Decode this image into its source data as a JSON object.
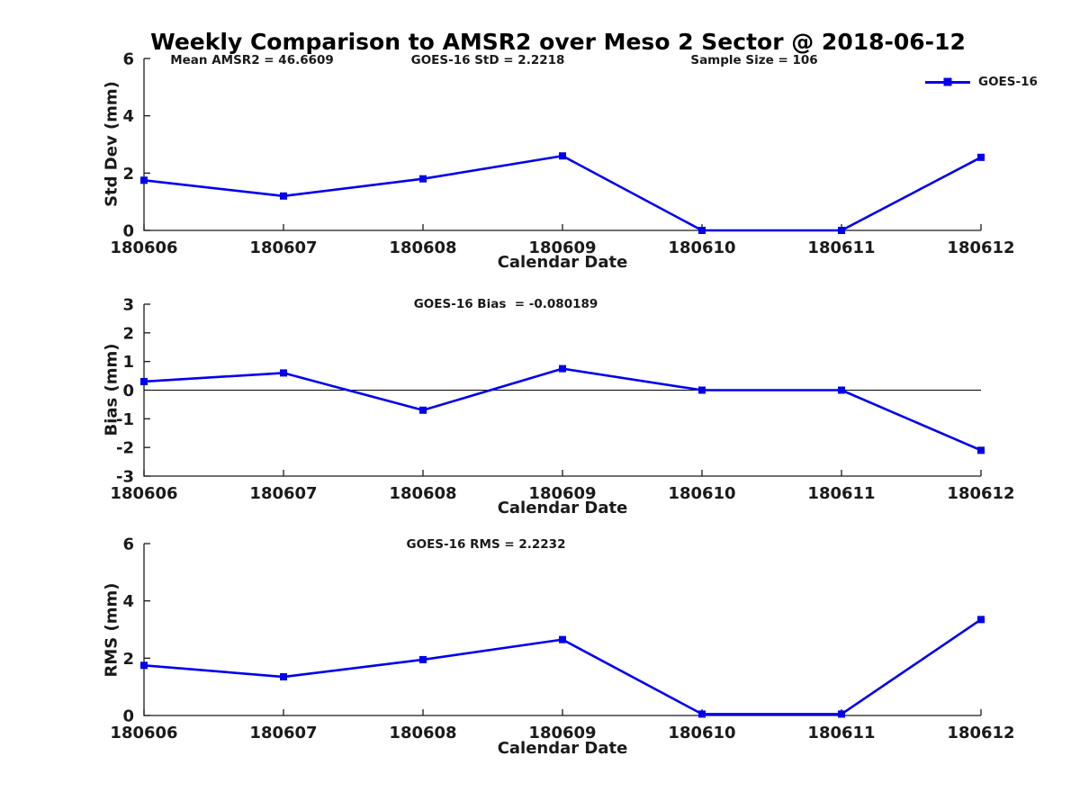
{
  "title": "Weekly Comparison to AMSR2 over Meso 2 Sector @ 2018-06-12",
  "legend": {
    "label": "GOES-16",
    "color": "#0000EE",
    "position": "top-right"
  },
  "colors": {
    "axis": "#1a1a1a",
    "zero_line": "#000000",
    "series": "#0000EE",
    "background": "#ffffff"
  },
  "chart_data": [
    {
      "id": "std-dev",
      "type": "line",
      "annotations": [
        "Mean AMSR2 = 46.6609",
        "GOES-16 StD = 2.2218",
        "Sample Size = 106"
      ],
      "categories": [
        "180606",
        "180607",
        "180608",
        "180609",
        "180610",
        "180611",
        "180612"
      ],
      "series": [
        {
          "name": "GOES-16",
          "values": [
            1.75,
            1.2,
            1.8,
            2.6,
            0,
            0,
            2.55
          ]
        }
      ],
      "xlabel": "Calendar Date",
      "ylabel": "Std Dev (mm)",
      "ylim": [
        0,
        6
      ],
      "yticks": [
        0,
        2,
        4,
        6
      ],
      "grid": false,
      "zero_line": false,
      "marker": "square"
    },
    {
      "id": "bias",
      "type": "line",
      "annotations": [
        "GOES-16 Bias  = -0.080189"
      ],
      "categories": [
        "180606",
        "180607",
        "180608",
        "180609",
        "180610",
        "180611",
        "180612"
      ],
      "series": [
        {
          "name": "GOES-16",
          "values": [
            0.3,
            0.6,
            -0.7,
            0.75,
            0,
            0,
            -2.1
          ]
        }
      ],
      "xlabel": "Calendar Date",
      "ylabel": "Bias (mm)",
      "ylim": [
        -3,
        3
      ],
      "yticks": [
        3,
        2,
        1,
        0,
        -1,
        -2,
        -3
      ],
      "grid": false,
      "zero_line": true,
      "marker": "square"
    },
    {
      "id": "rms",
      "type": "line",
      "annotations": [
        "GOES-16 RMS = 2.2232"
      ],
      "categories": [
        "180606",
        "180607",
        "180608",
        "180609",
        "180610",
        "180611",
        "180612"
      ],
      "series": [
        {
          "name": "GOES-16",
          "values": [
            1.75,
            1.35,
            1.95,
            2.65,
            0.05,
            0.05,
            3.35
          ]
        }
      ],
      "xlabel": "Calendar Date",
      "ylabel": "RMS (mm)",
      "ylim": [
        0,
        6
      ],
      "yticks": [
        0,
        2,
        4,
        6
      ],
      "grid": false,
      "zero_line": false,
      "marker": "square"
    }
  ]
}
